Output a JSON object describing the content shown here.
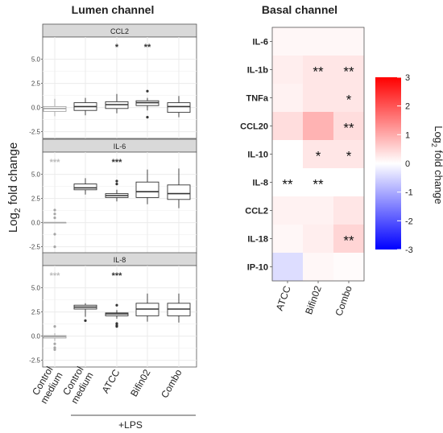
{
  "figure": {
    "lumen_title": "Lumen channel",
    "basal_title": "Basal channel",
    "lumen_ylabel_main": "Log",
    "lumen_ylabel_sub": "2",
    "lumen_ylabel_rest": " fold change",
    "colorbar_label_main": "Log",
    "colorbar_label_sub": "2",
    "colorbar_label_rest": " fold change",
    "lps_label": "+LPS",
    "colors": {
      "panel_strip": "#d9d9d9",
      "panel_bg": "#ffffff",
      "grid": "#ebebeb",
      "control_box": "#a6a6a6",
      "treated_box": "#333333",
      "heat_high": "#ff0000",
      "heat_mid": "#ffffff",
      "heat_low": "#0000ff"
    }
  },
  "chart_data": [
    {
      "type": "box",
      "panel": "CCL2",
      "categories": [
        "Control\nmedium",
        "Control\nmedium",
        "ATCC",
        "Bifin02",
        "Combo"
      ],
      "ylim": [
        -3.2,
        7.3
      ],
      "yticks": [
        -2.5,
        0.0,
        2.5,
        5.0
      ],
      "ytick_labels": [
        "-2.5",
        "0.0",
        "2.5",
        "5.0"
      ],
      "boxes": [
        {
          "q1": -0.4,
          "median": -0.1,
          "q3": 0.1,
          "min": -0.9,
          "max": 0.9,
          "outliers": [],
          "control": true
        },
        {
          "q1": -0.3,
          "median": 0.1,
          "q3": 0.5,
          "min": -0.8,
          "max": 1.0,
          "outliers": [],
          "control": false
        },
        {
          "q1": -0.1,
          "median": 0.3,
          "q3": 0.6,
          "min": -0.6,
          "max": 1.4,
          "outliers": [],
          "control": false
        },
        {
          "q1": 0.2,
          "median": 0.5,
          "q3": 0.7,
          "min": -0.3,
          "max": 1.0,
          "outliers": [
            1.7,
            -1.0
          ],
          "control": false
        },
        {
          "q1": -0.5,
          "median": 0.1,
          "q3": 0.5,
          "min": -1.0,
          "max": 1.2,
          "outliers": [],
          "control": false
        }
      ],
      "significance": [
        "",
        "",
        "*",
        "**",
        ""
      ]
    },
    {
      "type": "box",
      "panel": "IL-6",
      "categories": [
        "Control\nmedium",
        "Control\nmedium",
        "ATCC",
        "Bifin02",
        "Combo"
      ],
      "ylim": [
        -3.2,
        7.3
      ],
      "yticks": [
        -2.5,
        0.0,
        2.5,
        5.0
      ],
      "ytick_labels": [
        "-2.5",
        "0.0",
        "2.5",
        "5.0"
      ],
      "boxes": [
        {
          "q1": 0.0,
          "median": 0.0,
          "q3": 0.0,
          "min": 0.0,
          "max": 0.0,
          "outliers": [
            1.3,
            0.9,
            0.5,
            -1.2,
            -2.5
          ],
          "control": true
        },
        {
          "q1": 3.4,
          "median": 3.6,
          "q3": 4.0,
          "min": 2.9,
          "max": 4.6,
          "outliers": [],
          "control": false
        },
        {
          "q1": 2.6,
          "median": 2.8,
          "q3": 3.0,
          "min": 2.2,
          "max": 3.4,
          "outliers": [
            4.3,
            4.0
          ],
          "control": false
        },
        {
          "q1": 2.6,
          "median": 3.2,
          "q3": 4.2,
          "min": 1.9,
          "max": 5.5,
          "outliers": [],
          "control": false
        },
        {
          "q1": 2.4,
          "median": 3.0,
          "q3": 3.9,
          "min": 1.5,
          "max": 5.6,
          "outliers": [],
          "control": false
        }
      ],
      "significance": [
        "***",
        "",
        "***",
        "",
        ""
      ]
    },
    {
      "type": "box",
      "panel": "IL-8",
      "categories": [
        "Control\nmedium",
        "Control\nmedium",
        "ATCC",
        "Bifin02",
        "Combo"
      ],
      "ylim": [
        -3.2,
        7.3
      ],
      "yticks": [
        -2.5,
        0.0,
        2.5,
        5.0
      ],
      "ytick_labels": [
        "-2.5",
        "0.0",
        "2.5",
        "5.0"
      ],
      "boxes": [
        {
          "q1": -0.2,
          "median": -0.05,
          "q3": 0.05,
          "min": -0.5,
          "max": 0.3,
          "outliers": [
            1.0,
            -0.8,
            -1.2,
            -1.4
          ],
          "control": true
        },
        {
          "q1": 2.8,
          "median": 3.0,
          "q3": 3.2,
          "min": 2.0,
          "max": 3.4,
          "outliers": [
            1.6
          ],
          "control": false
        },
        {
          "q1": 2.1,
          "median": 2.3,
          "q3": 2.4,
          "min": 1.8,
          "max": 2.7,
          "outliers": [
            3.2,
            1.3,
            1.1,
            1.0
          ],
          "control": false
        },
        {
          "q1": 2.1,
          "median": 2.8,
          "q3": 3.4,
          "min": 1.5,
          "max": 4.4,
          "outliers": [],
          "control": false
        },
        {
          "q1": 2.1,
          "median": 2.8,
          "q3": 3.4,
          "min": 1.4,
          "max": 4.4,
          "outliers": [],
          "control": false
        }
      ],
      "significance": [
        "***",
        "",
        "***",
        "",
        ""
      ]
    },
    {
      "type": "heatmap",
      "title": "Basal channel",
      "columns": [
        "ATCC",
        "Bifin02",
        "Combo"
      ],
      "rows": [
        "IL-6",
        "IL-1b",
        "TNFa",
        "CCL20",
        "IL-10",
        "IL-8",
        "CCL2",
        "IL-18",
        "IP-10"
      ],
      "values": [
        [
          0.1,
          0.1,
          0.1
        ],
        [
          0.2,
          0.3,
          0.3
        ],
        [
          0.15,
          0.3,
          0.3
        ],
        [
          0.4,
          0.9,
          0.4
        ],
        [
          0.0,
          0.3,
          0.3
        ],
        [
          0.0,
          0.0,
          0.0
        ],
        [
          0.15,
          0.15,
          0.3
        ],
        [
          0.1,
          0.2,
          0.5
        ],
        [
          -0.4,
          0.1,
          0.05
        ]
      ],
      "significance": [
        [
          "",
          "",
          ""
        ],
        [
          "",
          "**",
          "**"
        ],
        [
          "",
          "",
          "*"
        ],
        [
          "",
          "",
          "**"
        ],
        [
          "",
          "*",
          "*"
        ],
        [
          "**",
          "**",
          ""
        ],
        [
          "",
          "",
          ""
        ],
        [
          "",
          "",
          "**"
        ],
        [
          "",
          "",
          ""
        ]
      ],
      "colorbar": {
        "min": -3,
        "max": 3,
        "ticks": [
          3,
          2,
          1,
          0,
          -1,
          -2,
          -3
        ],
        "tick_labels": [
          "3",
          "2",
          "1",
          "0",
          "-1",
          "-2",
          "-3"
        ]
      }
    }
  ]
}
